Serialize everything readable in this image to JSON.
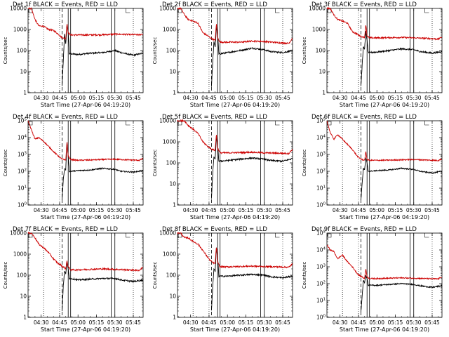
{
  "common": {
    "title_suffix": "BLACK = Events, RED = LLD",
    "xlabel": "Start Time (27-Apr-06 04:19:20)",
    "ylabel": "Counts/sec",
    "x_range_minutes": [
      "04:19:20",
      "05:53:00"
    ],
    "x_ticks": [
      "04:30",
      "04:45",
      "05:00",
      "05:15",
      "05:30",
      "05:45"
    ],
    "dotted_vertical_lines": [
      "04:32",
      "04:45",
      "05:45"
    ],
    "dashed_vertical_lines": [
      "04:47"
    ],
    "solid_vertical_lines": [
      "04:52",
      "04:54",
      "05:27",
      "05:30"
    ],
    "colors": {
      "events": "#000000",
      "lld": "#cc0000"
    },
    "log_scale": true
  },
  "chart_data": [
    {
      "title": "Det 1f BLACK = Events, RED = LLD",
      "type": "line",
      "yticks_style": "plain",
      "yticks": [
        "1",
        "10",
        "100",
        "1000",
        "10000"
      ],
      "ylim": [
        1,
        10000
      ],
      "series": [
        {
          "name": "Events",
          "color": "#000000",
          "x": [
            "04:47",
            "04:48",
            "04:49",
            "04:50",
            "04:51",
            "04:52",
            "04:53",
            "04:54",
            "05:00",
            "05:10",
            "05:20",
            "05:30",
            "05:35",
            "05:45",
            "05:53"
          ],
          "values": [
            2,
            30,
            600,
            200,
            1500,
            800,
            70,
            70,
            65,
            75,
            80,
            100,
            80,
            60,
            75
          ]
        },
        {
          "name": "LLD",
          "color": "#cc0000",
          "x": [
            "04:19:20",
            "04:22",
            "04:25",
            "04:28",
            "04:32",
            "04:36",
            "04:40",
            "04:44",
            "04:46",
            "04:48",
            "04:50",
            "04:51",
            "04:52",
            "04:54",
            "05:00",
            "05:10",
            "05:20",
            "05:30",
            "05:40",
            "05:50",
            "05:53"
          ],
          "values": [
            10000,
            10000,
            3000,
            1500,
            1400,
            1000,
            900,
            600,
            450,
            400,
            350,
            2000,
            700,
            550,
            550,
            550,
            560,
            600,
            580,
            560,
            620
          ]
        }
      ]
    },
    {
      "title": "Det 2f BLACK = Events, RED = LLD",
      "type": "line",
      "yticks_style": "plain",
      "yticks": [
        "1",
        "10",
        "100",
        "1000",
        "10000"
      ],
      "ylim": [
        1,
        10000
      ],
      "series": [
        {
          "name": "Events",
          "color": "#000000",
          "x": [
            "04:47",
            "04:48",
            "04:49",
            "04:50",
            "04:51",
            "04:52",
            "04:53",
            "04:54",
            "05:00",
            "05:10",
            "05:20",
            "05:30",
            "05:35",
            "05:45",
            "05:53"
          ],
          "values": [
            2,
            30,
            250,
            150,
            1200,
            700,
            70,
            70,
            80,
            100,
            130,
            110,
            90,
            80,
            100
          ]
        },
        {
          "name": "LLD",
          "color": "#cc0000",
          "x": [
            "04:19:20",
            "04:22",
            "04:25",
            "04:28",
            "04:32",
            "04:36",
            "04:40",
            "04:44",
            "04:46",
            "04:48",
            "04:50",
            "04:51",
            "04:52",
            "04:54",
            "05:00",
            "05:10",
            "05:20",
            "05:30",
            "05:40",
            "05:50",
            "05:53"
          ],
          "values": [
            10000,
            10000,
            5000,
            3000,
            2500,
            2000,
            700,
            500,
            400,
            350,
            300,
            2000,
            400,
            250,
            250,
            250,
            280,
            270,
            240,
            220,
            400
          ]
        }
      ]
    },
    {
      "title": "Det 3f BLACK = Events, RED = LLD",
      "type": "line",
      "yticks_style": "plain",
      "yticks": [
        "1",
        "10",
        "100",
        "1000",
        "10000"
      ],
      "ylim": [
        1,
        10000
      ],
      "series": [
        {
          "name": "Events",
          "color": "#000000",
          "x": [
            "04:47",
            "04:48",
            "04:49",
            "04:50",
            "04:51",
            "04:52",
            "04:53",
            "04:54",
            "05:00",
            "05:10",
            "05:20",
            "05:30",
            "05:35",
            "05:45",
            "05:53"
          ],
          "values": [
            2,
            20,
            150,
            120,
            800,
            300,
            80,
            80,
            85,
            100,
            120,
            110,
            90,
            75,
            90
          ]
        },
        {
          "name": "LLD",
          "color": "#cc0000",
          "x": [
            "04:19:20",
            "04:22",
            "04:25",
            "04:28",
            "04:32",
            "04:36",
            "04:40",
            "04:44",
            "04:46",
            "04:48",
            "04:50",
            "04:51",
            "04:52",
            "04:54",
            "05:00",
            "05:10",
            "05:20",
            "05:30",
            "05:40",
            "05:50",
            "05:53"
          ],
          "values": [
            10000,
            10000,
            5000,
            3000,
            2500,
            2000,
            800,
            600,
            500,
            450,
            420,
            1800,
            500,
            400,
            400,
            410,
            420,
            400,
            380,
            350,
            450
          ]
        }
      ]
    },
    {
      "title": "Det 4f BLACK = Events, RED = LLD",
      "type": "line",
      "yticks_style": "exponent",
      "yticks": [
        "10^0",
        "10^1",
        "10^2",
        "10^3",
        "10^4",
        "10^5"
      ],
      "ylim": [
        1,
        100000
      ],
      "series": [
        {
          "name": "Events",
          "color": "#000000",
          "x": [
            "04:47",
            "04:48",
            "04:49",
            "04:50",
            "04:51",
            "04:52",
            "04:53",
            "04:54",
            "05:00",
            "05:10",
            "05:20",
            "05:30",
            "05:35",
            "05:45",
            "05:53"
          ],
          "values": [
            2,
            30,
            150,
            120,
            5000,
            800,
            100,
            100,
            110,
            120,
            150,
            130,
            100,
            90,
            110
          ]
        },
        {
          "name": "LLD",
          "color": "#cc0000",
          "x": [
            "04:19:20",
            "04:22",
            "04:25",
            "04:28",
            "04:32",
            "04:36",
            "04:40",
            "04:44",
            "04:46",
            "04:48",
            "04:50",
            "04:51",
            "04:52",
            "04:54",
            "05:00",
            "05:10",
            "05:20",
            "05:30",
            "05:40",
            "05:50",
            "05:53"
          ],
          "values": [
            100000,
            30000,
            8000,
            10000,
            6000,
            3000,
            1500,
            800,
            600,
            500,
            450,
            6000,
            800,
            500,
            450,
            470,
            500,
            520,
            480,
            450,
            600
          ]
        }
      ]
    },
    {
      "title": "Det 5f BLACK = Events, RED = LLD",
      "type": "line",
      "yticks_style": "plain",
      "yticks": [
        "1",
        "10",
        "100",
        "1000",
        "10000"
      ],
      "ylim": [
        1,
        10000
      ],
      "series": [
        {
          "name": "Events",
          "color": "#000000",
          "x": [
            "04:47",
            "04:48",
            "04:49",
            "04:50",
            "04:51",
            "04:52",
            "04:53",
            "04:54",
            "05:00",
            "05:10",
            "05:20",
            "05:30",
            "05:35",
            "05:45",
            "05:53"
          ],
          "values": [
            2,
            30,
            200,
            150,
            1500,
            800,
            120,
            120,
            130,
            150,
            170,
            150,
            130,
            120,
            160
          ]
        },
        {
          "name": "LLD",
          "color": "#cc0000",
          "x": [
            "04:19:20",
            "04:22",
            "04:25",
            "04:28",
            "04:32",
            "04:36",
            "04:40",
            "04:44",
            "04:46",
            "04:48",
            "04:50",
            "04:51",
            "04:52",
            "04:54",
            "05:00",
            "05:10",
            "05:20",
            "05:30",
            "05:40",
            "05:50",
            "05:53"
          ],
          "values": [
            10000,
            10000,
            10000,
            6000,
            4000,
            2500,
            1000,
            600,
            500,
            420,
            400,
            2500,
            500,
            300,
            300,
            310,
            320,
            300,
            290,
            280,
            450
          ]
        }
      ]
    },
    {
      "title": "Det 6f BLACK = Events, RED = LLD",
      "type": "line",
      "yticks_style": "exponent",
      "yticks": [
        "10^0",
        "10^1",
        "10^2",
        "10^3",
        "10^4",
        "10^5"
      ],
      "ylim": [
        1,
        100000
      ],
      "series": [
        {
          "name": "Events",
          "color": "#000000",
          "x": [
            "04:47",
            "04:48",
            "04:49",
            "04:50",
            "04:51",
            "04:52",
            "04:53",
            "04:54",
            "05:00",
            "05:10",
            "05:20",
            "05:30",
            "05:35",
            "05:45",
            "05:53"
          ],
          "values": [
            2,
            20,
            150,
            120,
            600,
            300,
            100,
            100,
            110,
            120,
            150,
            130,
            100,
            80,
            100
          ]
        },
        {
          "name": "LLD",
          "color": "#cc0000",
          "x": [
            "04:19:20",
            "04:22",
            "04:25",
            "04:28",
            "04:32",
            "04:36",
            "04:40",
            "04:44",
            "04:46",
            "04:48",
            "04:50",
            "04:51",
            "04:52",
            "04:54",
            "05:00",
            "05:10",
            "05:20",
            "05:30",
            "05:40",
            "05:50",
            "05:53"
          ],
          "values": [
            100000,
            20000,
            8000,
            15000,
            8000,
            4000,
            2000,
            800,
            600,
            500,
            450,
            1500,
            500,
            450,
            450,
            460,
            480,
            500,
            470,
            440,
            550
          ]
        }
      ]
    },
    {
      "title": "Det 7f BLACK = Events, RED = LLD",
      "type": "line",
      "yticks_style": "plain",
      "yticks": [
        "1",
        "10",
        "100",
        "1000",
        "10000"
      ],
      "ylim": [
        1,
        10000
      ],
      "series": [
        {
          "name": "Events",
          "color": "#000000",
          "x": [
            "04:47",
            "04:48",
            "04:49",
            "04:50",
            "04:51",
            "04:52",
            "04:53",
            "04:54",
            "05:00",
            "05:10",
            "05:20",
            "05:30",
            "05:35",
            "05:45",
            "05:53"
          ],
          "values": [
            2,
            30,
            150,
            120,
            400,
            200,
            70,
            70,
            60,
            65,
            70,
            70,
            60,
            50,
            60
          ]
        },
        {
          "name": "LLD",
          "color": "#cc0000",
          "x": [
            "04:19:20",
            "04:22",
            "04:25",
            "04:28",
            "04:32",
            "04:36",
            "04:40",
            "04:44",
            "04:46",
            "04:48",
            "04:50",
            "04:51",
            "04:52",
            "04:54",
            "05:00",
            "05:10",
            "05:20",
            "05:30",
            "05:40",
            "05:50",
            "05:53"
          ],
          "values": [
            10000,
            10000,
            6000,
            3000,
            2000,
            1200,
            600,
            350,
            300,
            250,
            200,
            500,
            250,
            180,
            180,
            190,
            200,
            190,
            180,
            170,
            250
          ]
        }
      ]
    },
    {
      "title": "Det 8f BLACK = Events, RED = LLD",
      "type": "line",
      "yticks_style": "plain",
      "yticks": [
        "1",
        "10",
        "100",
        "1000",
        "10000"
      ],
      "ylim": [
        1,
        10000
      ],
      "series": [
        {
          "name": "Events",
          "color": "#000000",
          "x": [
            "04:47",
            "04:48",
            "04:49",
            "04:50",
            "04:51",
            "04:52",
            "04:53",
            "04:54",
            "05:00",
            "05:10",
            "05:20",
            "05:30",
            "05:35",
            "05:45",
            "05:53"
          ],
          "values": [
            2,
            30,
            200,
            150,
            2000,
            800,
            90,
            90,
            90,
            100,
            110,
            100,
            85,
            75,
            90
          ]
        },
        {
          "name": "LLD",
          "color": "#cc0000",
          "x": [
            "04:19:20",
            "04:22",
            "04:25",
            "04:28",
            "04:32",
            "04:36",
            "04:40",
            "04:44",
            "04:46",
            "04:48",
            "04:50",
            "04:51",
            "04:52",
            "04:54",
            "05:00",
            "05:10",
            "05:20",
            "05:30",
            "05:40",
            "05:50",
            "05:53"
          ],
          "values": [
            10000,
            10000,
            6000,
            6000,
            4000,
            3000,
            1500,
            700,
            500,
            400,
            350,
            2500,
            400,
            250,
            250,
            260,
            270,
            260,
            250,
            240,
            350
          ]
        }
      ]
    },
    {
      "title": "Det 9f BLACK = Events, RED = LLD",
      "type": "line",
      "yticks_style": "exponent",
      "yticks": [
        "10^0",
        "10^1",
        "10^2",
        "10^3",
        "10^4",
        "10^5"
      ],
      "ylim": [
        1,
        100000
      ],
      "series": [
        {
          "name": "Events",
          "color": "#000000",
          "x": [
            "04:47",
            "04:48",
            "04:49",
            "04:50",
            "04:51",
            "04:52",
            "04:53",
            "04:54",
            "05:00",
            "05:10",
            "05:20",
            "05:30",
            "05:35",
            "05:45",
            "05:53"
          ],
          "values": [
            2,
            20,
            150,
            120,
            300,
            200,
            80,
            80,
            80,
            90,
            100,
            90,
            75,
            60,
            75
          ]
        },
        {
          "name": "LLD",
          "color": "#cc0000",
          "x": [
            "04:19:20",
            "04:22",
            "04:25",
            "04:28",
            "04:32",
            "04:36",
            "04:40",
            "04:44",
            "04:46",
            "04:48",
            "04:50",
            "04:51",
            "04:52",
            "04:54",
            "05:00",
            "05:10",
            "05:20",
            "05:30",
            "05:40",
            "05:50",
            "05:53"
          ],
          "values": [
            20000,
            10000,
            8000,
            3000,
            5000,
            2000,
            1000,
            400,
            300,
            250,
            200,
            800,
            250,
            200,
            200,
            210,
            220,
            210,
            200,
            190,
            260
          ]
        }
      ]
    }
  ]
}
